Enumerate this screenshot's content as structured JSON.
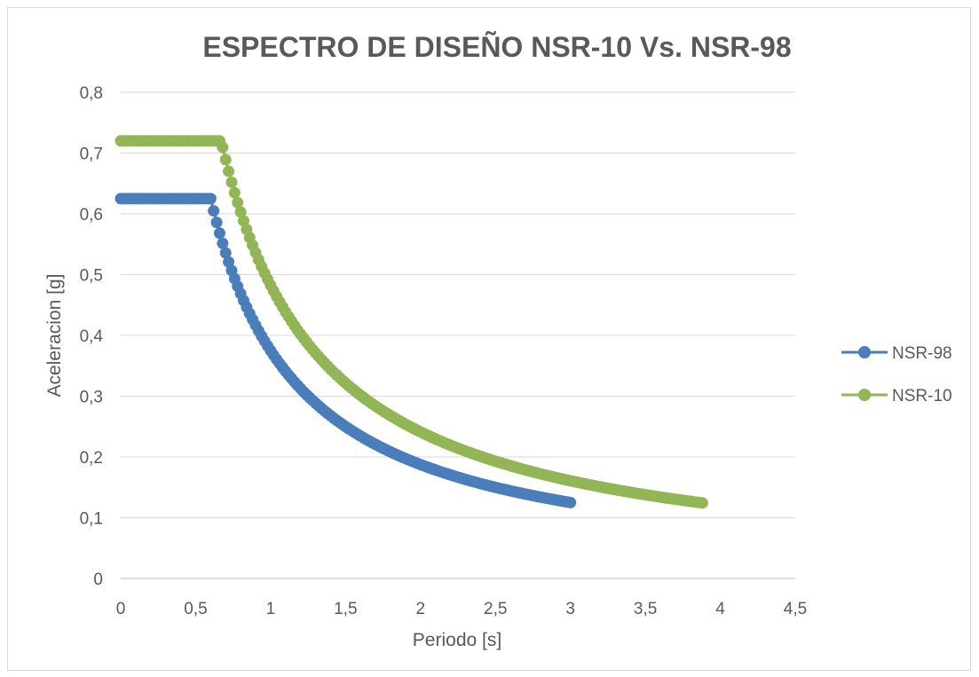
{
  "chart_data": {
    "type": "scatter",
    "title": "ESPECTRO DE DISEÑO NSR-10 Vs. NSR-98",
    "xlabel": "Periodo [s]",
    "ylabel": "Aceleracion [g]",
    "xlim": [
      0,
      4.5
    ],
    "ylim": [
      0,
      0.8
    ],
    "x_ticks": [
      0,
      0.5,
      1,
      1.5,
      2,
      2.5,
      3,
      3.5,
      4,
      4.5
    ],
    "x_tick_labels": [
      "0",
      "0,5",
      "1",
      "1,5",
      "2",
      "2,5",
      "3",
      "3,5",
      "4",
      "4,5"
    ],
    "y_ticks": [
      0,
      0.1,
      0.2,
      0.3,
      0.4,
      0.5,
      0.6,
      0.7,
      0.8
    ],
    "y_tick_labels": [
      "0",
      "0,1",
      "0,2",
      "0,3",
      "0,4",
      "0,5",
      "0,6",
      "0,7",
      "0,8"
    ],
    "grid": "horizontal",
    "legend_position": "right",
    "series": [
      {
        "name": "NSR-98",
        "color": "#4a7ebb",
        "plateau": 0.625,
        "corner_period": 0.6,
        "x_max": 3.0,
        "y_end": 0.125,
        "step": 0.02
      },
      {
        "name": "NSR-10",
        "color": "#92b556",
        "plateau": 0.72,
        "corner_period": 0.67,
        "x_max": 3.88,
        "y_end": 0.116,
        "step": 0.02
      }
    ]
  }
}
